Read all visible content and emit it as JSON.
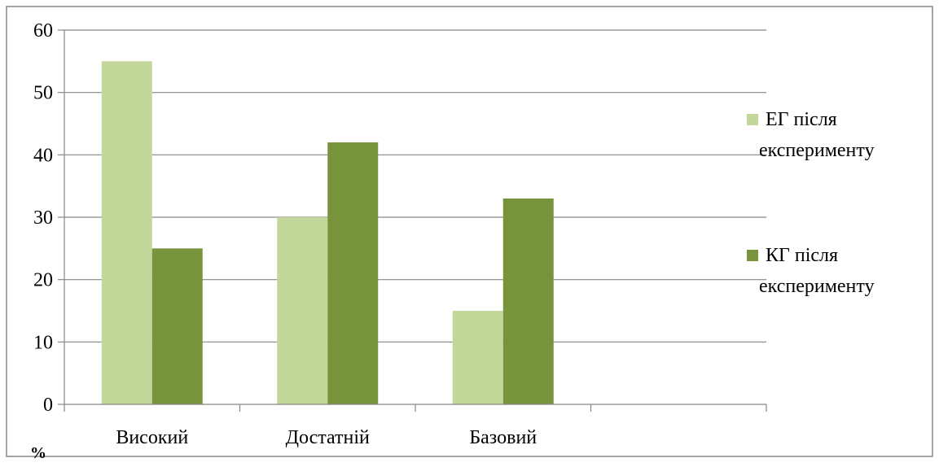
{
  "chart_data": {
    "type": "bar",
    "categories": [
      "Високий",
      "Достатній",
      "Базовий",
      ""
    ],
    "series": [
      {
        "name": "ЕГ після експерименту",
        "values": [
          55,
          30,
          15,
          null
        ],
        "color": "#c4d79b"
      },
      {
        "name": "КГ після експерименту",
        "values": [
          25,
          42,
          33,
          null
        ],
        "color": "#77933c"
      }
    ],
    "ylim": [
      0,
      60
    ],
    "yticks": [
      0,
      10,
      20,
      30,
      40,
      50,
      60
    ],
    "y_unit": "%",
    "grid": true,
    "legend_position": "right",
    "legend_lines": [
      [
        "ЕГ після",
        "експерименту"
      ],
      [
        "КГ після",
        "експерименту"
      ]
    ],
    "gridline_color": "#868686",
    "frame_color": "#868686"
  }
}
